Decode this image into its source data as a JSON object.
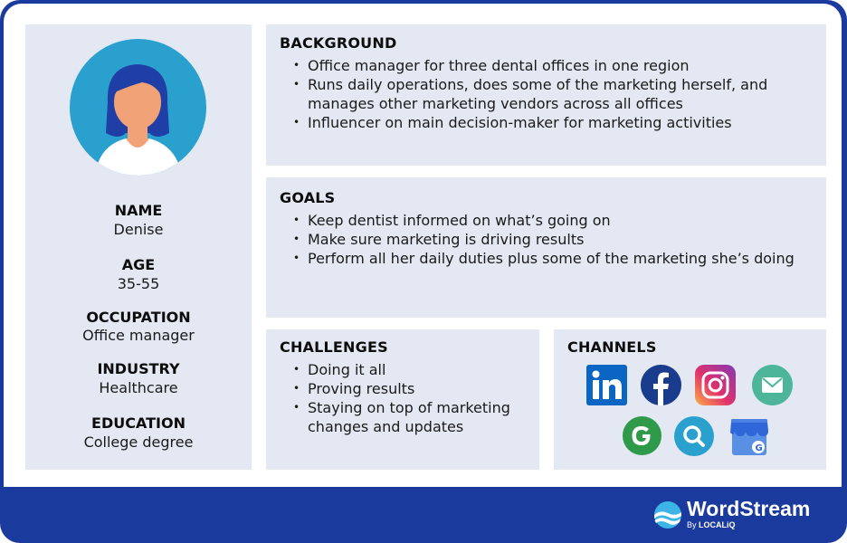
{
  "profile": {
    "name_label": "NAME",
    "name": "Denise",
    "age_label": "AGE",
    "age": "35-55",
    "occupation_label": "OCCUPATION",
    "occupation": "Office manager",
    "industry_label": "INDUSTRY",
    "industry": "Healthcare",
    "education_label": "EDUCATION",
    "education": "College degree"
  },
  "background": {
    "title": "BACKGROUND",
    "items": [
      "Office manager for three dental offices in one region",
      "Runs daily operations, does some of the marketing herself, and manages other marketing vendors across all offices",
      "Influencer on main decision-maker for marketing activities"
    ]
  },
  "goals": {
    "title": "GOALS",
    "items": [
      "Keep dentist informed on what’s going on",
      "Make sure marketing is driving results",
      "Perform all her daily duties plus some of the marketing she’s doing"
    ]
  },
  "challenges": {
    "title": "CHALLENGES",
    "items": [
      "Doing it all",
      "Proving results",
      "Staying on top of marketing changes and updates"
    ]
  },
  "channels": {
    "title": "CHANNELS",
    "icons": [
      "linkedin-icon",
      "facebook-icon",
      "instagram-icon",
      "email-icon",
      "google-icon",
      "search-icon",
      "google-business-profile-icon"
    ]
  },
  "brand": {
    "name": "WordStream",
    "by": "By",
    "partner": "LOCALiQ"
  },
  "colors": {
    "frame": "#1b3a9e",
    "panel": "#e3e8f2",
    "avatar_bg": "#2aa0ce"
  }
}
